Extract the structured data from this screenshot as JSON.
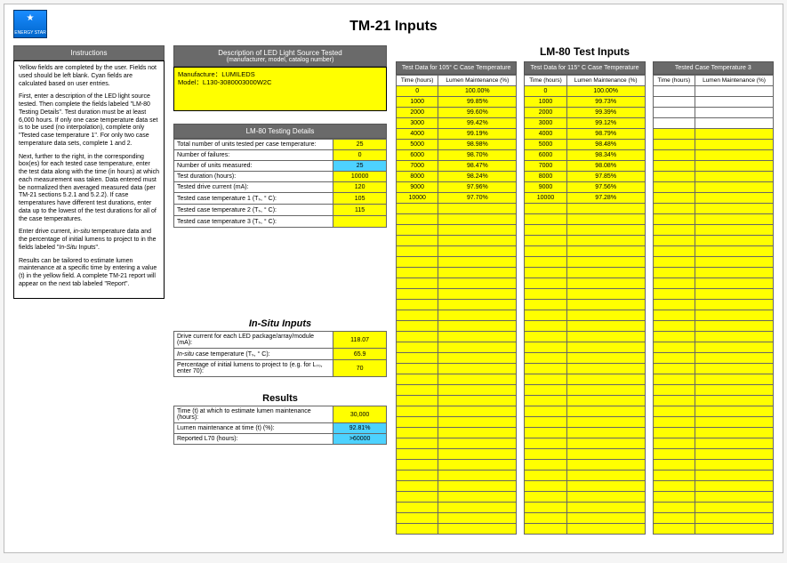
{
  "logo_text": "ENERGY STAR",
  "page_title": "TM-21 Inputs",
  "instructions": {
    "header": "Instructions",
    "paragraphs": [
      "Yellow fields are completed by the user. Fields not used should be left blank. Cyan fields are calculated based on user entries.",
      "First, enter a description of the LED light source tested. Then complete the fields labeled \"LM-80 Testing Details\". Test duration must be at least 6,000 hours. If only one case temperature data set is to be used (no interpolation), complete only \"Tested case temperature 1\". For only two case temperature data sets, complete 1 and 2.",
      "Next, further to the right, in the corresponding box(es) for each tested case temperature, enter the test data along with the time (in hours) at which each measurement was taken. Data entered must be normalized then averaged measured data (per TM-21 sections 5.2.1 and 5.2.2). If case temperatures have different test durations, enter data up to the lowest of the test durations for all of the case temperatures.",
      "Enter drive current, in-situ temperature data and the percentage of initial lumens to project to in the fields labeled \"In-Situ Inputs\".",
      "Results can be tailored to estimate lumen maintenance at a specific time by entering a value (t) in the yellow field. A complete TM-21 report will appear on the next tab labeled \"Report\"."
    ]
  },
  "description": {
    "header_line1": "Description of LED Light Source Tested",
    "header_line2": "(manufacturer, model, catalog number)",
    "line1": "Manufacture：LUMILEDS",
    "line2": "Model：L130-3080003000W2C"
  },
  "lm80_details": {
    "header": "LM-80 Testing Details",
    "rows": [
      {
        "label": "Total number of units tested per case temperature:",
        "value": "25",
        "class": "yellow"
      },
      {
        "label": "Number of failures:",
        "value": "0",
        "class": "yellow"
      },
      {
        "label": "Number of units measured:",
        "value": "25",
        "class": "cyan"
      },
      {
        "label": "Test duration (hours):",
        "value": "10000",
        "class": "yellow"
      },
      {
        "label": "Tested drive current (mA):",
        "value": "120",
        "class": "yellow"
      },
      {
        "label": "Tested case temperature 1 (Tₛ, ° C):",
        "value": "105",
        "class": "yellow"
      },
      {
        "label": "Tested case temperature 2 (Tₛ, ° C):",
        "value": "115",
        "class": "yellow"
      },
      {
        "label": "Tested case temperature 3 (Tₛ, ° C):",
        "value": "",
        "class": "yellow"
      }
    ]
  },
  "insitu": {
    "title": "In-Situ  Inputs",
    "rows": [
      {
        "label": "Drive current for each LED package/array/module (mA):",
        "value": "118.07",
        "class": "yellow"
      },
      {
        "label": "In-situ case temperature (Tₛ, ° C):",
        "value": "65.9",
        "class": "yellow"
      },
      {
        "label": "Percentage of initial lumens to project to (e.g. for L₇₀, enter 70):",
        "value": "70",
        "class": "yellow"
      }
    ]
  },
  "results": {
    "title": "Results",
    "rows": [
      {
        "label": "Time (t) at which to estimate lumen maintenance (hours):",
        "value": "30,000",
        "class": "yellow"
      },
      {
        "label": "Lumen maintenance at time (t) (%):",
        "value": "92.81%",
        "class": "cyan"
      },
      {
        "label": "Reported L70 (hours):",
        "value": ">60000",
        "class": "cyan"
      }
    ]
  },
  "lm80_inputs": {
    "title": "LM-80 Test Inputs",
    "col_time": "Time (hours)",
    "col_lm": "Lumen Maintenance (%)",
    "sets": [
      {
        "header": "Test Data for 105° C Case Temperature",
        "rows": [
          [
            "0",
            "100.00%"
          ],
          [
            "1000",
            "99.85%"
          ],
          [
            "2000",
            "99.60%"
          ],
          [
            "3000",
            "99.42%"
          ],
          [
            "4000",
            "99.19%"
          ],
          [
            "5000",
            "98.98%"
          ],
          [
            "6000",
            "98.70%"
          ],
          [
            "7000",
            "98.47%"
          ],
          [
            "8000",
            "98.24%"
          ],
          [
            "9000",
            "97.96%"
          ],
          [
            "10000",
            "97.70%"
          ]
        ]
      },
      {
        "header": "Test Data for 115° C Case Temperature",
        "rows": [
          [
            "0",
            "100.00%"
          ],
          [
            "1000",
            "99.73%"
          ],
          [
            "2000",
            "99.39%"
          ],
          [
            "3000",
            "99.12%"
          ],
          [
            "4000",
            "98.79%"
          ],
          [
            "5000",
            "98.48%"
          ],
          [
            "6000",
            "98.34%"
          ],
          [
            "7000",
            "98.08%"
          ],
          [
            "8000",
            "97.85%"
          ],
          [
            "9000",
            "97.56%"
          ],
          [
            "10000",
            "97.28%"
          ]
        ]
      },
      {
        "header": "Tested Case Temperature 3",
        "rows": []
      }
    ],
    "total_rows": 42
  },
  "colors": {
    "yellow": "#ffff00",
    "cyan": "#4dd2ff",
    "header_gray": "#6a6a6a",
    "border": "#666666"
  }
}
